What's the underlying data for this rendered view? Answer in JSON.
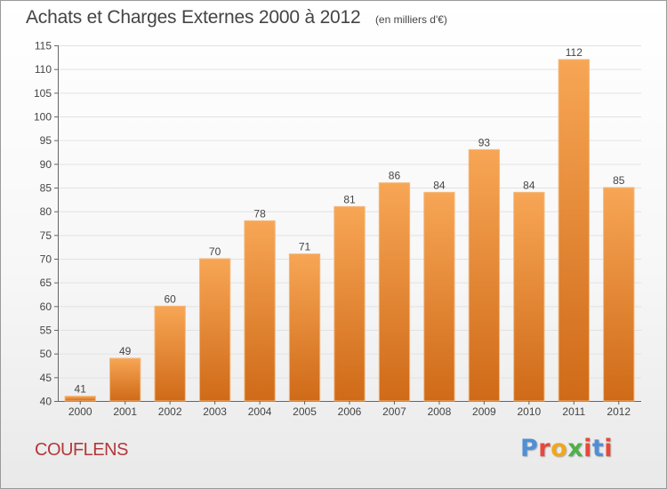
{
  "header": {
    "title": "Achats et Charges Externes 2000 à 2012",
    "subtitle": "(en milliers d'€)"
  },
  "footer": {
    "commune": "COUFLENS",
    "logo_text": "Proxiti"
  },
  "colors": {
    "bar_top": "#f7a655",
    "bar_bottom": "#cf6a18",
    "logo_letters": [
      "#4f8fd6",
      "#e8483a",
      "#f0a71e",
      "#4fb04a",
      "#e8483a",
      "#4f8fd6",
      "#e8483a"
    ]
  },
  "chart_data": {
    "type": "bar",
    "title": "Achats et Charges Externes 2000 à 2012",
    "subtitle": "(en milliers d'€)",
    "categories": [
      "2000",
      "2001",
      "2002",
      "2003",
      "2004",
      "2005",
      "2006",
      "2007",
      "2008",
      "2009",
      "2010",
      "2011",
      "2012"
    ],
    "values": [
      41,
      49,
      60,
      70,
      78,
      71,
      81,
      86,
      84,
      93,
      84,
      112,
      85
    ],
    "xlabel": "",
    "ylabel": "",
    "ylim": [
      40,
      115
    ],
    "yticks": [
      40,
      45,
      50,
      55,
      60,
      65,
      70,
      75,
      80,
      85,
      90,
      95,
      100,
      105,
      110,
      115
    ],
    "grid": true,
    "data_labels": true
  }
}
